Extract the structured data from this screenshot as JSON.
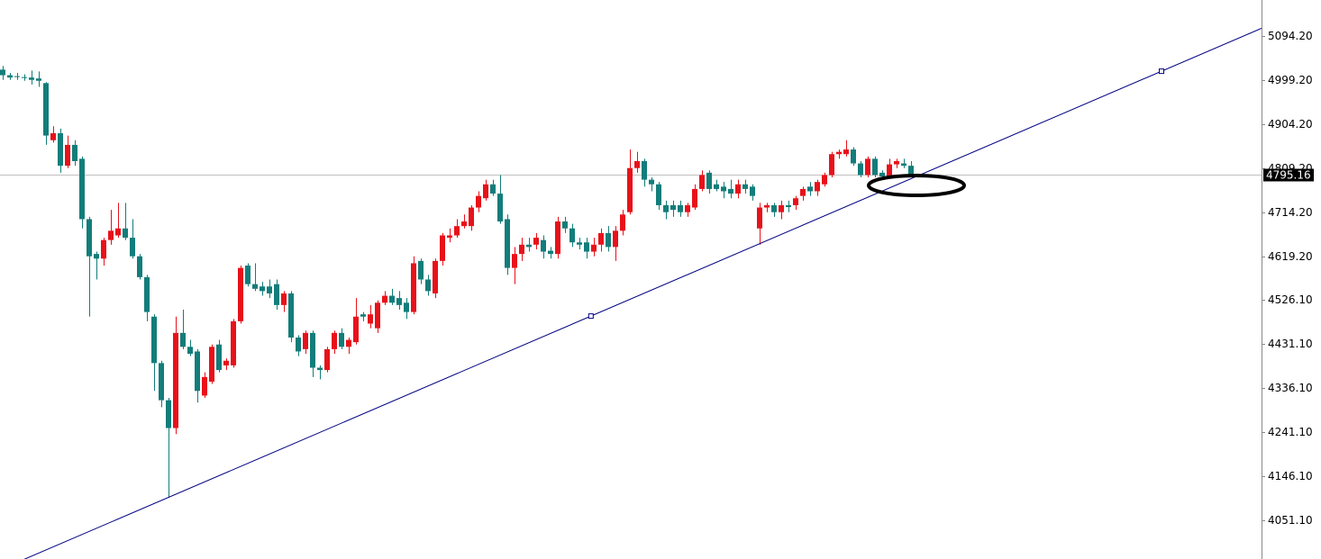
{
  "chart_data": {
    "type": "candlestick",
    "up_color": "#e8111a",
    "down_color": "#127d7a",
    "ylim": [
      3968,
      5172
    ],
    "yticks": [
      {
        "value": 5094.2,
        "label": "5094.20"
      },
      {
        "value": 4999.2,
        "label": "4999.20"
      },
      {
        "value": 4904.2,
        "label": "4904.20"
      },
      {
        "value": 4809.2,
        "label": "4809.20"
      },
      {
        "value": 4714.2,
        "label": "4714.20"
      },
      {
        "value": 4619.2,
        "label": "4619.20"
      },
      {
        "value": 4526.1,
        "label": "4526.10"
      },
      {
        "value": 4431.1,
        "label": "4431.10"
      },
      {
        "value": 4336.1,
        "label": "4336.10"
      },
      {
        "value": 4241.1,
        "label": "4241.10"
      },
      {
        "value": 4146.1,
        "label": "4146.10"
      },
      {
        "value": 4051.1,
        "label": "4051.10"
      }
    ],
    "current_price": 4795.16,
    "trendline": {
      "color": "#000080",
      "points": [
        [
          81.6,
          4491.2
        ],
        [
          160.75,
          5018.6
        ]
      ]
    },
    "ohlc": [
      [
        5022,
        5030,
        5000,
        5010
      ],
      [
        5010,
        5015,
        5000,
        5005
      ],
      [
        5008,
        5015,
        5000,
        5006
      ],
      [
        5006,
        5012,
        4998,
        5004
      ],
      [
        5005,
        5020,
        4990,
        5000
      ],
      [
        5003,
        5018,
        4985,
        4998
      ],
      [
        4993,
        4995,
        4860,
        4880
      ],
      [
        4870,
        4900,
        4865,
        4885
      ],
      [
        4885,
        4895,
        4800,
        4815
      ],
      [
        4815,
        4880,
        4810,
        4860
      ],
      [
        4860,
        4870,
        4815,
        4825
      ],
      [
        4830,
        4835,
        4680,
        4700
      ],
      [
        4700,
        4705,
        4490,
        4620
      ],
      [
        4625,
        4630,
        4570,
        4615
      ],
      [
        4615,
        4660,
        4600,
        4655
      ],
      [
        4655,
        4720,
        4645,
        4675
      ],
      [
        4665,
        4735,
        4660,
        4680
      ],
      [
        4680,
        4735,
        4655,
        4660
      ],
      [
        4660,
        4700,
        4615,
        4620
      ],
      [
        4620,
        4625,
        4570,
        4575
      ],
      [
        4575,
        4580,
        4480,
        4500
      ],
      [
        4490,
        4495,
        4330,
        4390
      ],
      [
        4390,
        4395,
        4295,
        4310
      ],
      [
        4310,
        4315,
        4100,
        4250
      ],
      [
        4250,
        4490,
        4237,
        4455
      ],
      [
        4455,
        4505,
        4420,
        4425
      ],
      [
        4425,
        4440,
        4405,
        4410
      ],
      [
        4415,
        4420,
        4305,
        4330
      ],
      [
        4320,
        4370,
        4315,
        4360
      ],
      [
        4350,
        4430,
        4345,
        4425
      ],
      [
        4430,
        4440,
        4370,
        4375
      ],
      [
        4385,
        4400,
        4375,
        4395
      ],
      [
        4385,
        4485,
        4380,
        4480
      ],
      [
        4480,
        4600,
        4475,
        4595
      ],
      [
        4600,
        4605,
        4555,
        4560
      ],
      [
        4560,
        4605,
        4545,
        4550
      ],
      [
        4555,
        4565,
        4535,
        4545
      ],
      [
        4555,
        4570,
        4530,
        4540
      ],
      [
        4560,
        4570,
        4505,
        4515
      ],
      [
        4515,
        4545,
        4500,
        4540
      ],
      [
        4540,
        4545,
        4435,
        4445
      ],
      [
        4445,
        4450,
        4405,
        4415
      ],
      [
        4420,
        4460,
        4410,
        4455
      ],
      [
        4455,
        4460,
        4360,
        4380
      ],
      [
        4380,
        4385,
        4355,
        4375
      ],
      [
        4375,
        4425,
        4370,
        4420
      ],
      [
        4420,
        4460,
        4410,
        4455
      ],
      [
        4455,
        4465,
        4420,
        4425
      ],
      [
        4425,
        4445,
        4410,
        4440
      ],
      [
        4435,
        4530,
        4430,
        4490
      ],
      [
        4495,
        4500,
        4480,
        4490
      ],
      [
        4475,
        4515,
        4465,
        4495
      ],
      [
        4465,
        4525,
        4455,
        4520
      ],
      [
        4520,
        4545,
        4515,
        4535
      ],
      [
        4535,
        4550,
        4515,
        4520
      ],
      [
        4530,
        4545,
        4505,
        4515
      ],
      [
        4520,
        4530,
        4485,
        4500
      ],
      [
        4500,
        4620,
        4495,
        4605
      ],
      [
        4610,
        4615,
        4560,
        4570
      ],
      [
        4570,
        4580,
        4535,
        4545
      ],
      [
        4540,
        4615,
        4530,
        4610
      ],
      [
        4610,
        4670,
        4600,
        4665
      ],
      [
        4660,
        4680,
        4650,
        4665
      ],
      [
        4665,
        4700,
        4660,
        4685
      ],
      [
        4685,
        4710,
        4680,
        4695
      ],
      [
        4685,
        4730,
        4675,
        4725
      ],
      [
        4725,
        4760,
        4715,
        4750
      ],
      [
        4745,
        4785,
        4740,
        4775
      ],
      [
        4775,
        4785,
        4750,
        4755
      ],
      [
        4755,
        4795,
        4690,
        4695
      ],
      [
        4700,
        4710,
        4580,
        4595
      ],
      [
        4595,
        4640,
        4560,
        4625
      ],
      [
        4625,
        4660,
        4610,
        4645
      ],
      [
        4645,
        4660,
        4630,
        4640
      ],
      [
        4645,
        4670,
        4635,
        4660
      ],
      [
        4655,
        4665,
        4615,
        4630
      ],
      [
        4632,
        4640,
        4615,
        4625
      ],
      [
        4625,
        4705,
        4615,
        4695
      ],
      [
        4695,
        4705,
        4670,
        4680
      ],
      [
        4680,
        4690,
        4640,
        4650
      ],
      [
        4650,
        4660,
        4635,
        4645
      ],
      [
        4650,
        4660,
        4615,
        4630
      ],
      [
        4630,
        4660,
        4620,
        4645
      ],
      [
        4645,
        4680,
        4630,
        4670
      ],
      [
        4670,
        4685,
        4630,
        4640
      ],
      [
        4640,
        4685,
        4610,
        4675
      ],
      [
        4675,
        4720,
        4665,
        4710
      ],
      [
        4715,
        4850,
        4710,
        4810
      ],
      [
        4810,
        4845,
        4800,
        4825
      ],
      [
        4825,
        4830,
        4770,
        4785
      ],
      [
        4785,
        4790,
        4760,
        4775
      ],
      [
        4775,
        4780,
        4720,
        4730
      ],
      [
        4730,
        4740,
        4700,
        4715
      ],
      [
        4730,
        4740,
        4705,
        4720
      ],
      [
        4730,
        4740,
        4705,
        4715
      ],
      [
        4715,
        4735,
        4705,
        4730
      ],
      [
        4725,
        4775,
        4720,
        4765
      ],
      [
        4765,
        4805,
        4760,
        4795
      ],
      [
        4800,
        4805,
        4755,
        4765
      ],
      [
        4775,
        4785,
        4760,
        4765
      ],
      [
        4770,
        4780,
        4745,
        4760
      ],
      [
        4765,
        4785,
        4745,
        4755
      ],
      [
        4755,
        4785,
        4745,
        4775
      ],
      [
        4775,
        4785,
        4755,
        4765
      ],
      [
        4770,
        4775,
        4740,
        4750
      ],
      [
        4680,
        4735,
        4645,
        4725
      ],
      [
        4725,
        4735,
        4715,
        4730
      ],
      [
        4730,
        4735,
        4705,
        4715
      ],
      [
        4715,
        4740,
        4700,
        4730
      ],
      [
        4730,
        4740,
        4715,
        4726
      ],
      [
        4730,
        4750,
        4720,
        4745
      ],
      [
        4750,
        4770,
        4740,
        4765
      ],
      [
        4770,
        4780,
        4750,
        4760
      ],
      [
        4760,
        4785,
        4750,
        4780
      ],
      [
        4775,
        4800,
        4770,
        4795
      ],
      [
        4795,
        4845,
        4790,
        4840
      ],
      [
        4840,
        4850,
        4830,
        4845
      ],
      [
        4840,
        4870,
        4835,
        4850
      ],
      [
        4850,
        4855,
        4815,
        4820
      ],
      [
        4820,
        4825,
        4790,
        4795
      ],
      [
        4795,
        4835,
        4790,
        4830
      ],
      [
        4830,
        4835,
        4790,
        4795
      ],
      [
        4800,
        4805,
        4785,
        4792
      ],
      [
        4793,
        4830,
        4788,
        4818
      ],
      [
        4818,
        4830,
        4810,
        4825
      ],
      [
        4820,
        4830,
        4810,
        4815
      ],
      [
        4815,
        4825,
        4790,
        4795.16
      ]
    ]
  }
}
